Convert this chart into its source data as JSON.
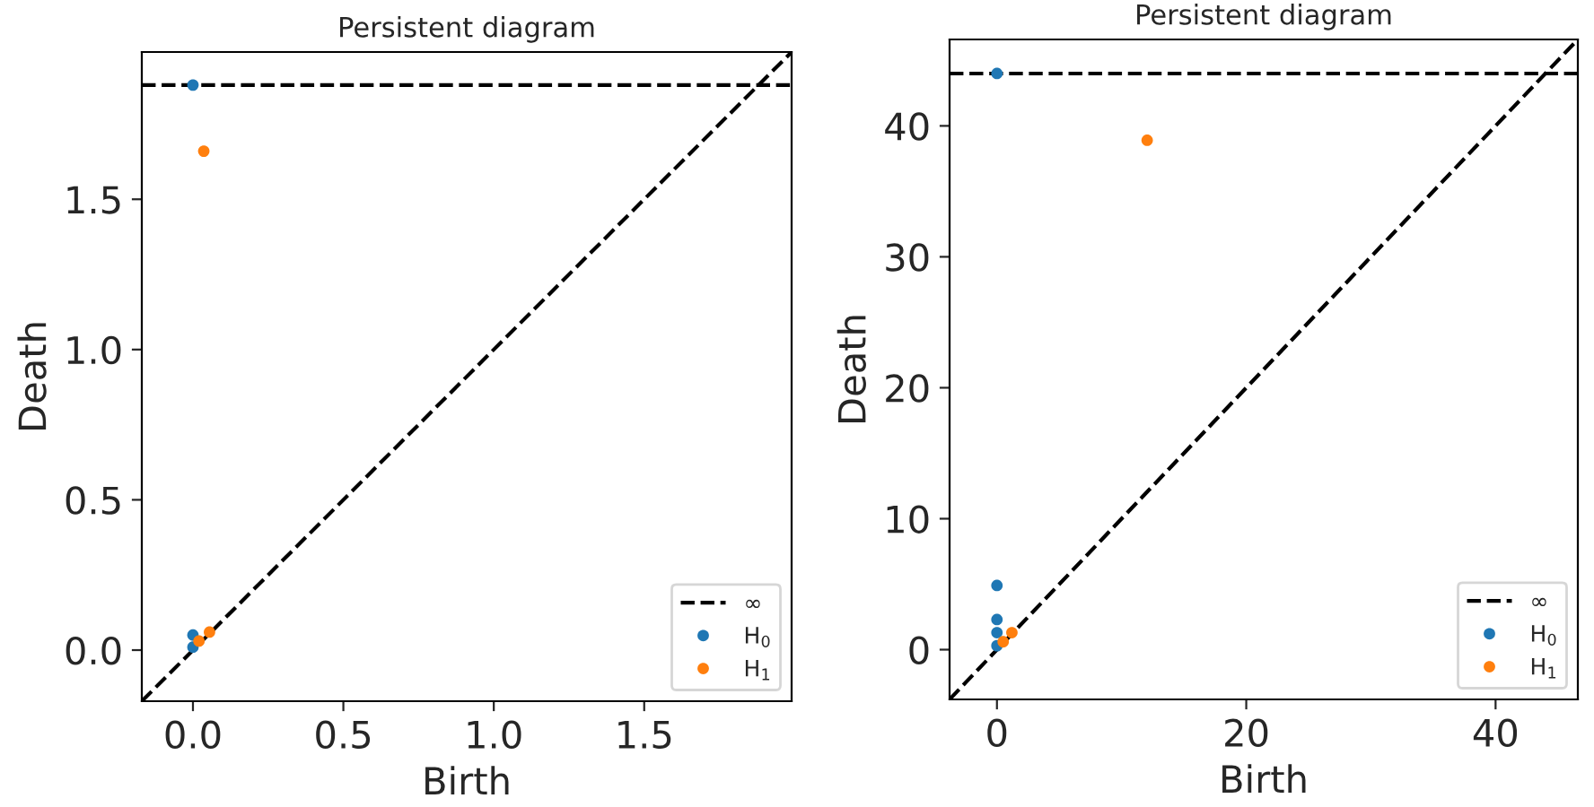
{
  "chart_data": [
    {
      "type": "scatter",
      "title": "Persistent diagram",
      "xlabel": "Birth",
      "ylabel": "Death",
      "xlim": [
        -0.17,
        1.99
      ],
      "ylim": [
        -0.17,
        1.99
      ],
      "xticks": [
        {
          "value": 0,
          "label": "0.0"
        },
        {
          "value": 0.5,
          "label": "0.5"
        },
        {
          "value": 1,
          "label": "1.0"
        },
        {
          "value": 1.5,
          "label": "1.5"
        }
      ],
      "yticks": [
        {
          "value": 0,
          "label": "0.0"
        },
        {
          "value": 0.5,
          "label": "0.5"
        },
        {
          "value": 1,
          "label": "1.0"
        },
        {
          "value": 1.5,
          "label": "1.5"
        }
      ],
      "grid": false,
      "legend": "lower right",
      "ref_lines": [
        {
          "axis": "y",
          "value": 1.88,
          "label": "∞",
          "color": "#000000",
          "line_style": "dashed"
        }
      ],
      "series": [
        {
          "type": "line",
          "color": "#000000",
          "line_style": "dashed",
          "x": [
            -0.17,
            1.99
          ],
          "values": [
            -0.17,
            1.99
          ]
        },
        {
          "name": "H$_{0}$",
          "color": "#1f77b4",
          "marker": "circle",
          "x": [
            0,
            0,
            0
          ],
          "values": [
            1.88,
            0.05,
            0.01
          ]
        },
        {
          "name": "H$_{1}$",
          "color": "#ff7f0e",
          "marker": "circle",
          "x": [
            0.036,
            0.02,
            0.055
          ],
          "values": [
            1.66,
            0.03,
            0.06
          ]
        }
      ]
    },
    {
      "type": "scatter",
      "title": "Persistent diagram",
      "xlabel": "Birth",
      "ylabel": "Death",
      "xlim": [
        -3.8,
        46.6
      ],
      "ylim": [
        -3.8,
        46.6
      ],
      "xticks": [
        0,
        20,
        40
      ],
      "yticks": [
        0,
        10,
        20,
        30,
        40
      ],
      "grid": false,
      "legend": "lower right",
      "ref_lines": [
        {
          "axis": "y",
          "value": 44,
          "label": "∞",
          "color": "#000000",
          "line_style": "dashed"
        }
      ],
      "series": [
        {
          "type": "line",
          "color": "#000000",
          "line_style": "dashed",
          "x": [
            -3.8,
            46.6
          ],
          "values": [
            -3.8,
            46.6
          ]
        },
        {
          "name": "H$_{0}$",
          "color": "#1f77b4",
          "marker": "circle",
          "x": [
            0,
            0,
            0,
            0,
            0
          ],
          "values": [
            44,
            4.9,
            2.3,
            1.3,
            0.3
          ]
        },
        {
          "name": "H$_{1}$",
          "color": "#ff7f0e",
          "marker": "circle",
          "x": [
            12.05,
            0.5,
            1.2
          ],
          "values": [
            38.9,
            0.6,
            1.3
          ]
        }
      ]
    }
  ]
}
